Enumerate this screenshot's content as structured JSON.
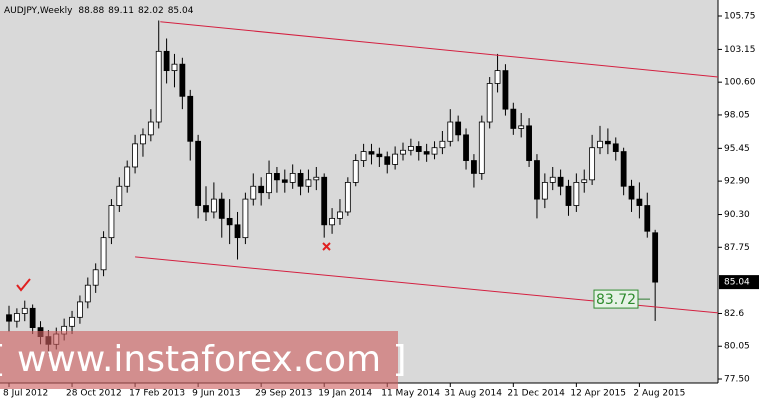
{
  "chart_data": {
    "type": "candlestick",
    "symbol": "AUDJPY,Weekly",
    "categories": [
      "8 Jul 2012",
      null,
      null,
      null,
      null,
      null,
      null,
      null,
      "28 Oct 2012",
      null,
      null,
      null,
      null,
      null,
      null,
      null,
      "17 Feb 2013",
      null,
      null,
      null,
      null,
      null,
      null,
      null,
      "9 Jun 2013",
      null,
      null,
      null,
      null,
      null,
      null,
      null,
      "29 Sep 2013",
      null,
      null,
      null,
      null,
      null,
      null,
      null,
      "19 Jan 2014",
      null,
      null,
      null,
      null,
      null,
      null,
      null,
      "11 May 2014",
      null,
      null,
      null,
      null,
      null,
      null,
      null,
      "31 Aug 2014",
      null,
      null,
      null,
      null,
      null,
      null,
      null,
      "21 Dec 2014",
      null,
      null,
      null,
      null,
      null,
      null,
      null,
      "12 Apr 2015",
      null,
      null,
      null,
      null,
      null,
      null,
      null,
      "2 Aug 2015",
      null,
      null
    ],
    "ohlc": [
      [
        82.5,
        83.2,
        81.2,
        82.0
      ],
      [
        82.0,
        83.0,
        81.5,
        82.6
      ],
      [
        82.6,
        83.6,
        82.0,
        83.0
      ],
      [
        83.0,
        83.3,
        81.0,
        81.5
      ],
      [
        81.5,
        82.0,
        80.2,
        80.8
      ],
      [
        80.8,
        81.3,
        79.4,
        80.2
      ],
      [
        80.2,
        81.5,
        79.8,
        81.0
      ],
      [
        81.0,
        82.2,
        80.5,
        81.6
      ],
      [
        81.6,
        82.8,
        81.0,
        82.3
      ],
      [
        82.3,
        84.0,
        81.8,
        83.5
      ],
      [
        83.5,
        85.4,
        83.0,
        84.8
      ],
      [
        84.8,
        86.5,
        84.2,
        86.0
      ],
      [
        86.0,
        89.0,
        85.5,
        88.5
      ],
      [
        88.5,
        91.5,
        88.0,
        91.0
      ],
      [
        91.0,
        93.2,
        90.5,
        92.5
      ],
      [
        92.5,
        94.5,
        92.0,
        94.0
      ],
      [
        94.0,
        96.5,
        93.5,
        95.8
      ],
      [
        95.8,
        97.0,
        94.8,
        96.5
      ],
      [
        96.5,
        98.5,
        96.0,
        97.5
      ],
      [
        97.5,
        105.4,
        97.0,
        103.0
      ],
      [
        103.0,
        104.0,
        100.5,
        101.5
      ],
      [
        101.5,
        102.8,
        100.2,
        102.0
      ],
      [
        102.0,
        102.5,
        98.5,
        99.5
      ],
      [
        99.5,
        100.0,
        94.5,
        96.0
      ],
      [
        96.0,
        96.5,
        90.0,
        91.0
      ],
      [
        91.0,
        92.5,
        89.8,
        90.5
      ],
      [
        90.5,
        92.8,
        90.0,
        91.5
      ],
      [
        91.5,
        92.0,
        88.5,
        90.0
      ],
      [
        90.0,
        91.5,
        88.0,
        89.5
      ],
      [
        89.5,
        90.5,
        86.8,
        88.5
      ],
      [
        88.5,
        92.0,
        88.0,
        91.5
      ],
      [
        91.5,
        93.5,
        91.0,
        92.5
      ],
      [
        92.5,
        93.2,
        91.0,
        92.0
      ],
      [
        92.0,
        94.5,
        91.5,
        93.5
      ],
      [
        93.5,
        94.0,
        92.0,
        93.0
      ],
      [
        93.0,
        93.8,
        92.0,
        92.8
      ],
      [
        92.8,
        94.2,
        92.3,
        93.5
      ],
      [
        93.5,
        93.8,
        91.8,
        92.5
      ],
      [
        92.5,
        93.8,
        92.0,
        93.0
      ],
      [
        93.0,
        94.0,
        92.2,
        93.2
      ],
      [
        93.2,
        93.5,
        88.5,
        89.5
      ],
      [
        89.5,
        90.8,
        88.8,
        90.0
      ],
      [
        90.0,
        91.5,
        89.5,
        90.5
      ],
      [
        90.5,
        93.2,
        90.2,
        92.8
      ],
      [
        92.8,
        95.0,
        92.5,
        94.5
      ],
      [
        94.5,
        95.8,
        94.0,
        95.2
      ],
      [
        95.2,
        95.8,
        94.2,
        95.0
      ],
      [
        95.0,
        95.5,
        94.0,
        94.8
      ],
      [
        94.8,
        95.2,
        93.5,
        94.2
      ],
      [
        94.2,
        95.6,
        93.8,
        95.0
      ],
      [
        95.0,
        95.9,
        94.5,
        95.3
      ],
      [
        95.3,
        96.2,
        94.9,
        95.6
      ],
      [
        95.6,
        96.0,
        94.5,
        95.2
      ],
      [
        95.2,
        95.8,
        94.4,
        95.0
      ],
      [
        95.0,
        96.0,
        94.6,
        95.5
      ],
      [
        95.5,
        96.8,
        95.0,
        96.0
      ],
      [
        96.0,
        98.5,
        95.6,
        97.5
      ],
      [
        97.5,
        98.0,
        96.0,
        96.5
      ],
      [
        96.5,
        97.0,
        93.8,
        94.5
      ],
      [
        94.5,
        95.0,
        92.4,
        93.5
      ],
      [
        93.5,
        98.0,
        93.0,
        97.5
      ],
      [
        97.5,
        101.0,
        97.0,
        100.5
      ],
      [
        100.5,
        102.8,
        99.8,
        101.5
      ],
      [
        101.5,
        102.0,
        98.0,
        98.5
      ],
      [
        98.5,
        99.0,
        96.5,
        97.0
      ],
      [
        97.0,
        98.2,
        96.3,
        97.2
      ],
      [
        97.2,
        97.8,
        94.0,
        94.5
      ],
      [
        94.5,
        95.0,
        90.0,
        91.5
      ],
      [
        91.5,
        93.5,
        90.8,
        92.8
      ],
      [
        92.8,
        94.0,
        92.2,
        93.2
      ],
      [
        93.2,
        93.8,
        91.8,
        92.5
      ],
      [
        92.5,
        93.0,
        90.2,
        91.0
      ],
      [
        91.0,
        93.5,
        90.5,
        92.8
      ],
      [
        92.8,
        93.8,
        92.0,
        93.0
      ],
      [
        93.0,
        96.5,
        92.6,
        95.5
      ],
      [
        95.5,
        97.2,
        95.0,
        96.0
      ],
      [
        96.0,
        97.0,
        95.0,
        95.8
      ],
      [
        95.8,
        96.3,
        94.5,
        95.2
      ],
      [
        95.2,
        95.5,
        91.8,
        92.5
      ],
      [
        92.5,
        93.0,
        90.5,
        91.5
      ],
      [
        91.5,
        92.8,
        90.0,
        91.0
      ],
      [
        91.0,
        92.0,
        88.5,
        89.0
      ],
      [
        88.88,
        89.11,
        82.02,
        85.04
      ]
    ],
    "ylim": [
      77.5,
      105.75
    ],
    "yticks": [
      {
        "value": 77.5,
        "label": "77.50"
      },
      80.05,
      82.6,
      {
        "value": 87.75,
        "label": "87.75"
      },
      {
        "value": 90.3,
        "label": "90.30"
      },
      {
        "value": 92.9,
        "label": "92.90"
      },
      95.45,
      98.05,
      {
        "value": 100.6,
        "label": "100.60"
      },
      103.15,
      105.75
    ],
    "trendlines": [
      {
        "x": [
          19.2,
          90
        ],
        "y": [
          105.3,
          101.0
        ],
        "color": "#d42040"
      },
      {
        "x": [
          16.0,
          90
        ],
        "y": [
          87.0,
          82.64
        ],
        "color": "#d42040"
      }
    ],
    "level": 83.72,
    "watermark": "[ www.instaforex.com ]"
  }
}
